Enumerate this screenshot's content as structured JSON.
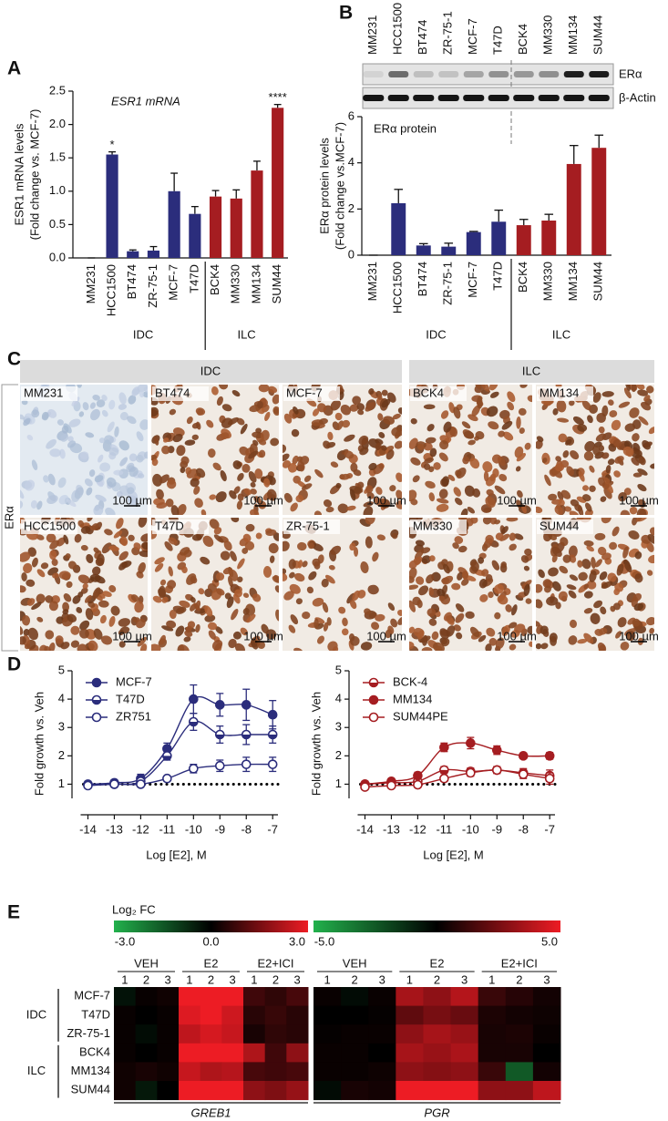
{
  "panel_labels": [
    "A",
    "B",
    "C",
    "D",
    "E"
  ],
  "chart_data": [
    {
      "type": "bar",
      "title": "ESR1 mRNA",
      "ylabel": [
        "ESR1 mRNA levels",
        "(Fold change vs. MCF-7)"
      ],
      "categories": [
        "MM231",
        "HCC1500",
        "BT474",
        "ZR-75-1",
        "MCF-7",
        "T47D",
        "BCK4",
        "MM330",
        "MM134",
        "SUM44"
      ],
      "series": [
        {
          "name": "IDC",
          "color": "#2b2d7c",
          "values": [
            0,
            1.55,
            0.1,
            0.11,
            1.0,
            0.66,
            null,
            null,
            null,
            null
          ],
          "errors": [
            0,
            0.04,
            0.02,
            0.06,
            0.27,
            0.11,
            null,
            null,
            null,
            null
          ],
          "annotations": [
            null,
            "*",
            null,
            null,
            null,
            null,
            null,
            null,
            null,
            null
          ]
        },
        {
          "name": "ILC",
          "color": "#a51d21",
          "values": [
            null,
            null,
            null,
            null,
            null,
            null,
            0.92,
            0.89,
            1.31,
            2.25
          ],
          "errors": [
            null,
            null,
            null,
            null,
            null,
            null,
            0.09,
            0.13,
            0.14,
            0.05
          ],
          "annotations": [
            null,
            null,
            null,
            null,
            null,
            null,
            null,
            null,
            null,
            "****"
          ]
        }
      ],
      "ylim": [
        0,
        2.5
      ],
      "yticks": [
        {
          "value": 0,
          "label": "0.0"
        },
        0.5,
        {
          "value": 1,
          "label": "1.0"
        },
        1.5,
        {
          "value": 2,
          "label": "2.0"
        },
        2.5
      ]
    },
    {
      "type": "bar",
      "title": "ERα protein",
      "ylabel": [
        "ERα protein levels",
        "(Fold change vs.MCF-7)"
      ],
      "blot_labels": [
        "ERα",
        "β-Actin"
      ],
      "categories": [
        "MM231",
        "HCC1500",
        "BT474",
        "ZR-75-1",
        "MCF-7",
        "T47D",
        "BCK4",
        "MM330",
        "MM134",
        "SUM44"
      ],
      "series": [
        {
          "name": "IDC",
          "color": "#2b2d7c",
          "values": [
            0,
            2.25,
            0.42,
            0.37,
            1.0,
            1.45,
            null,
            null,
            null,
            null
          ],
          "errors": [
            0,
            0.6,
            0.08,
            0.15,
            0.03,
            0.5,
            null,
            null,
            null,
            null
          ]
        },
        {
          "name": "ILC",
          "color": "#a51d21",
          "values": [
            null,
            null,
            null,
            null,
            null,
            null,
            1.3,
            1.5,
            3.95,
            4.65
          ],
          "errors": [
            null,
            null,
            null,
            null,
            null,
            null,
            0.25,
            0.27,
            0.8,
            0.55
          ]
        }
      ],
      "ylim": [
        0,
        6
      ],
      "yticks": [
        0,
        2,
        4,
        6
      ]
    },
    {
      "type": "line",
      "xlabel": "Log [E2], M",
      "ylabel": "Fold  growth vs. Veh",
      "x": [
        -14,
        -13,
        -12,
        -11,
        -10,
        -9,
        -8,
        -7
      ],
      "xlim": [
        -14.5,
        -6.8
      ],
      "xticks": [
        -14,
        -13,
        -12,
        -11,
        -10,
        -9,
        -8,
        -7
      ],
      "ylim": [
        0.5,
        5
      ],
      "yticks": [
        1,
        2,
        3,
        4,
        5
      ],
      "hline": 1,
      "series": [
        {
          "name": "MCF-7",
          "color": "#2b2d7c",
          "marker": "filled",
          "values": [
            1.0,
            1.05,
            1.2,
            2.25,
            4.0,
            3.8,
            3.8,
            3.45
          ],
          "errors": [
            0.1,
            0.1,
            0.15,
            0.2,
            0.5,
            0.4,
            0.55,
            0.5
          ]
        },
        {
          "name": "T47D",
          "color": "#2b2d7c",
          "marker": "half",
          "values": [
            0.98,
            1.0,
            1.1,
            2.0,
            3.2,
            2.75,
            2.75,
            2.75
          ],
          "errors": [
            0.08,
            0.08,
            0.1,
            0.15,
            0.3,
            0.3,
            0.35,
            0.3
          ]
        },
        {
          "name": "ZR751",
          "color": "#2b2d7c",
          "marker": "open",
          "values": [
            0.95,
            1.0,
            1.0,
            1.2,
            1.55,
            1.65,
            1.7,
            1.7
          ],
          "errors": [
            0.08,
            0.06,
            0.05,
            0.08,
            0.15,
            0.2,
            0.25,
            0.25
          ]
        }
      ]
    },
    {
      "type": "line",
      "xlabel": "Log [E2], M",
      "ylabel": "Fold  growth vs. Veh",
      "x": [
        -14,
        -13,
        -12,
        -11,
        -10,
        -9,
        -8,
        -7
      ],
      "xlim": [
        -14.5,
        -6.8
      ],
      "xticks": [
        -14,
        -13,
        -12,
        -11,
        -10,
        -9,
        -8,
        -7
      ],
      "ylim": [
        0.5,
        5
      ],
      "yticks": [
        1,
        2,
        3,
        4,
        5
      ],
      "hline": 1,
      "series": [
        {
          "name": "BCK-4",
          "color": "#a51d21",
          "marker": "half",
          "values": [
            1.0,
            1.05,
            1.1,
            1.5,
            1.45,
            1.5,
            1.4,
            1.3
          ],
          "errors": [
            0.1,
            0.1,
            0.1,
            0.12,
            0.12,
            0.12,
            0.15,
            0.2
          ]
        },
        {
          "name": "MM134",
          "color": "#a51d21",
          "marker": "filled",
          "values": [
            1.0,
            1.1,
            1.3,
            2.3,
            2.45,
            2.2,
            2.0,
            2.0
          ],
          "errors": [
            0.1,
            0.1,
            0.12,
            0.15,
            0.2,
            0.15,
            0.1,
            0.12
          ]
        },
        {
          "name": "SUM44PE",
          "color": "#a51d21",
          "marker": "open",
          "values": [
            0.9,
            0.95,
            0.98,
            1.2,
            1.4,
            1.5,
            1.35,
            1.2
          ],
          "errors": [
            0.08,
            0.08,
            0.08,
            0.1,
            0.12,
            0.12,
            0.15,
            0.2
          ]
        }
      ]
    },
    {
      "type": "heatmap",
      "legend_title": "Log₂ FC",
      "colors": [
        "#22b14c",
        "#000000",
        "#ed1c24"
      ],
      "column_groups": [
        "VEH",
        "E2",
        "E2+ICI"
      ],
      "replicates": [
        "1",
        "2",
        "3"
      ],
      "row_groups": [
        {
          "name": "IDC",
          "rows": [
            "MCF-7",
            "T47D",
            "ZR-75-1"
          ]
        },
        {
          "name": "ILC",
          "rows": [
            "BCK4",
            "MM134",
            "SUM44"
          ]
        }
      ],
      "panels": [
        {
          "name": "GREB1",
          "zlim": [
            -3,
            3
          ],
          "zticks": [
            {
              "value": -3,
              "label": "-3.0"
            },
            {
              "value": 0,
              "label": "0.0"
            },
            {
              "value": 3,
              "label": "3.0"
            }
          ],
          "values": [
            [
              -0.3,
              0.1,
              0.2,
              3,
              3,
              3,
              0.8,
              0.6,
              0.9
            ],
            [
              0.1,
              0,
              0.1,
              2.8,
              3,
              2.6,
              0.5,
              0.7,
              0.5
            ],
            [
              0.1,
              -0.2,
              0.1,
              2.4,
              2.7,
              2.5,
              0.3,
              0.6,
              0.5
            ],
            [
              0.1,
              0,
              0.1,
              3,
              3,
              3,
              2.2,
              0.8,
              1.8
            ],
            [
              0.2,
              0.3,
              0.2,
              2.5,
              2.2,
              2.3,
              0.9,
              0.8,
              0.9
            ],
            [
              0.2,
              -0.4,
              0,
              3,
              3,
              3,
              1.8,
              1.6,
              1.9
            ]
          ]
        },
        {
          "name": "PGR",
          "zlim": [
            -5,
            5
          ],
          "zticks": [
            {
              "value": -5,
              "label": "-5.0"
            },
            {
              "value": 5,
              "label": "5.0"
            }
          ],
          "values": [
            [
              0.2,
              -0.3,
              0.2,
              3.5,
              3,
              3.8,
              1.2,
              0.8,
              0.4
            ],
            [
              0,
              0,
              0.1,
              2,
              2.5,
              2.2,
              0.6,
              0.4,
              0.3
            ],
            [
              0.1,
              0.2,
              0.2,
              3,
              3.5,
              3.2,
              0.5,
              0.6,
              0.2
            ],
            [
              0.2,
              0.2,
              0,
              3.5,
              3.2,
              3.6,
              0.5,
              0.5,
              0
            ],
            [
              0.2,
              0.2,
              0.3,
              3,
              2.8,
              3,
              1.2,
              -2.5,
              0.4
            ],
            [
              -0.3,
              0.5,
              0.4,
              5,
              5,
              5,
              3,
              3,
              4
            ]
          ]
        }
      ]
    }
  ],
  "micrographs": {
    "groups": [
      "IDC",
      "ILC"
    ],
    "row_label": "ERα",
    "rows": [
      [
        "MM231",
        "BT474",
        "MCF-7",
        "BCK4",
        "MM134"
      ],
      [
        "HCC1500",
        "T47D",
        "ZR-75-1",
        "MM330",
        "SUM44"
      ]
    ],
    "scale_bar": "100 µm"
  }
}
